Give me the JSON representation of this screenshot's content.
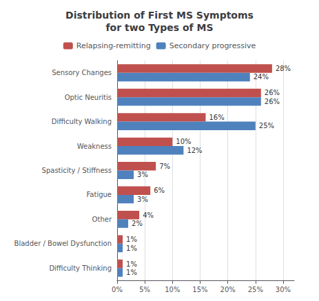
{
  "chart_data": {
    "type": "bar",
    "orientation": "horizontal",
    "title": "Distribution of First MS Symptoms\nfor two Types of MS",
    "categories": [
      "Sensory Changes",
      "Optic Neuritis",
      "Difficulty Walking",
      "Weakness",
      "Spasticity / Stiffness",
      "Fatigue",
      "Other",
      "Bladder / Bowel Dysfunction",
      "Difficulty Thinking"
    ],
    "series": [
      {
        "name": "Relapsing-remitting",
        "color": "#C0504D",
        "values": [
          28,
          26,
          16,
          10,
          7,
          6,
          4,
          1,
          1
        ],
        "value_labels": [
          "28%",
          "26%",
          "16%",
          "10%",
          "7%",
          "6%",
          "4%",
          "1%",
          "1%"
        ]
      },
      {
        "name": "Secondary progressive",
        "color": "#4F81BD",
        "values": [
          24,
          26,
          25,
          12,
          3,
          3,
          2,
          1,
          1
        ],
        "value_labels": [
          "24%",
          "26%",
          "25%",
          "12%",
          "3%",
          "3%",
          "2%",
          "1%",
          "1%"
        ]
      }
    ],
    "xlim": [
      0,
      32
    ],
    "xticks": [
      {
        "value": 0,
        "label": "0%"
      },
      {
        "value": 5,
        "label": "5%"
      },
      {
        "value": 10,
        "label": "10%"
      },
      {
        "value": 15,
        "label": "15%"
      },
      {
        "value": 20,
        "label": "20%"
      },
      {
        "value": 25,
        "label": "25%"
      },
      {
        "value": 30,
        "label": "30%"
      }
    ],
    "grid": true,
    "legend": "top",
    "data_labels": true
  }
}
